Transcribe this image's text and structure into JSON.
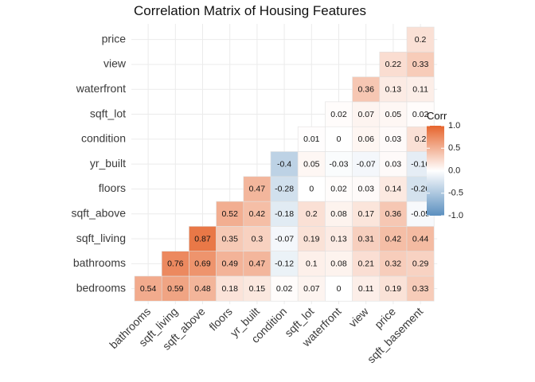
{
  "chart_data": {
    "type": "heatmap",
    "title": "Correlation Matrix of Housing Features",
    "x_labels": [
      "bathrooms",
      "sqft_living",
      "sqft_above",
      "floors",
      "yr_built",
      "condition",
      "sqft_lot",
      "waterfront",
      "view",
      "price",
      "sqft_basement"
    ],
    "y_labels": [
      "bedrooms",
      "bathrooms",
      "sqft_living",
      "sqft_above",
      "floors",
      "yr_built",
      "condition",
      "sqft_lot",
      "waterfront",
      "view",
      "price"
    ],
    "cells": [
      {
        "row": "bedrooms",
        "col": "bathrooms",
        "value": 0.54
      },
      {
        "row": "bedrooms",
        "col": "sqft_living",
        "value": 0.59
      },
      {
        "row": "bedrooms",
        "col": "sqft_above",
        "value": 0.48
      },
      {
        "row": "bedrooms",
        "col": "floors",
        "value": 0.18
      },
      {
        "row": "bedrooms",
        "col": "yr_built",
        "value": 0.15
      },
      {
        "row": "bedrooms",
        "col": "condition",
        "value": 0.02
      },
      {
        "row": "bedrooms",
        "col": "sqft_lot",
        "value": 0.07
      },
      {
        "row": "bedrooms",
        "col": "waterfront",
        "value": 0
      },
      {
        "row": "bedrooms",
        "col": "view",
        "value": 0.11
      },
      {
        "row": "bedrooms",
        "col": "price",
        "value": 0.19
      },
      {
        "row": "bedrooms",
        "col": "sqft_basement",
        "value": 0.33
      },
      {
        "row": "bathrooms",
        "col": "sqft_living",
        "value": 0.76
      },
      {
        "row": "bathrooms",
        "col": "sqft_above",
        "value": 0.69
      },
      {
        "row": "bathrooms",
        "col": "floors",
        "value": 0.49
      },
      {
        "row": "bathrooms",
        "col": "yr_built",
        "value": 0.47
      },
      {
        "row": "bathrooms",
        "col": "condition",
        "value": -0.12
      },
      {
        "row": "bathrooms",
        "col": "sqft_lot",
        "value": 0.1
      },
      {
        "row": "bathrooms",
        "col": "waterfront",
        "value": 0.08
      },
      {
        "row": "bathrooms",
        "col": "view",
        "value": 0.21
      },
      {
        "row": "bathrooms",
        "col": "price",
        "value": 0.32
      },
      {
        "row": "bathrooms",
        "col": "sqft_basement",
        "value": 0.29
      },
      {
        "row": "sqft_living",
        "col": "sqft_above",
        "value": 0.87
      },
      {
        "row": "sqft_living",
        "col": "floors",
        "value": 0.35
      },
      {
        "row": "sqft_living",
        "col": "yr_built",
        "value": 0.3
      },
      {
        "row": "sqft_living",
        "col": "condition",
        "value": -0.07
      },
      {
        "row": "sqft_living",
        "col": "sqft_lot",
        "value": 0.19
      },
      {
        "row": "sqft_living",
        "col": "waterfront",
        "value": 0.13
      },
      {
        "row": "sqft_living",
        "col": "view",
        "value": 0.31
      },
      {
        "row": "sqft_living",
        "col": "price",
        "value": 0.42
      },
      {
        "row": "sqft_living",
        "col": "sqft_basement",
        "value": 0.44
      },
      {
        "row": "sqft_above",
        "col": "floors",
        "value": 0.52
      },
      {
        "row": "sqft_above",
        "col": "yr_built",
        "value": 0.42
      },
      {
        "row": "sqft_above",
        "col": "condition",
        "value": -0.18
      },
      {
        "row": "sqft_above",
        "col": "sqft_lot",
        "value": 0.2
      },
      {
        "row": "sqft_above",
        "col": "waterfront",
        "value": 0.08
      },
      {
        "row": "sqft_above",
        "col": "view",
        "value": 0.17
      },
      {
        "row": "sqft_above",
        "col": "price",
        "value": 0.36
      },
      {
        "row": "sqft_above",
        "col": "sqft_basement",
        "value": -0.05
      },
      {
        "row": "floors",
        "col": "yr_built",
        "value": 0.47
      },
      {
        "row": "floors",
        "col": "condition",
        "value": -0.28
      },
      {
        "row": "floors",
        "col": "sqft_lot",
        "value": 0
      },
      {
        "row": "floors",
        "col": "waterfront",
        "value": 0.02
      },
      {
        "row": "floors",
        "col": "view",
        "value": 0.03
      },
      {
        "row": "floors",
        "col": "price",
        "value": 0.14
      },
      {
        "row": "floors",
        "col": "sqft_basement",
        "value": -0.26
      },
      {
        "row": "yr_built",
        "col": "condition",
        "value": -0.4
      },
      {
        "row": "yr_built",
        "col": "sqft_lot",
        "value": 0.05
      },
      {
        "row": "yr_built",
        "col": "waterfront",
        "value": -0.03
      },
      {
        "row": "yr_built",
        "col": "view",
        "value": -0.07
      },
      {
        "row": "yr_built",
        "col": "price",
        "value": 0.03
      },
      {
        "row": "yr_built",
        "col": "sqft_basement",
        "value": -0.16
      },
      {
        "row": "condition",
        "col": "sqft_lot",
        "value": 0.01
      },
      {
        "row": "condition",
        "col": "waterfront",
        "value": 0
      },
      {
        "row": "condition",
        "col": "view",
        "value": 0.06
      },
      {
        "row": "condition",
        "col": "price",
        "value": 0.03
      },
      {
        "row": "condition",
        "col": "sqft_basement",
        "value": 0.2
      },
      {
        "row": "sqft_lot",
        "col": "waterfront",
        "value": 0.02
      },
      {
        "row": "sqft_lot",
        "col": "view",
        "value": 0.07
      },
      {
        "row": "sqft_lot",
        "col": "price",
        "value": 0.05
      },
      {
        "row": "sqft_lot",
        "col": "sqft_basement",
        "value": 0.02
      },
      {
        "row": "waterfront",
        "col": "view",
        "value": 0.36
      },
      {
        "row": "waterfront",
        "col": "price",
        "value": 0.13
      },
      {
        "row": "waterfront",
        "col": "sqft_basement",
        "value": 0.11
      },
      {
        "row": "view",
        "col": "price",
        "value": 0.22
      },
      {
        "row": "view",
        "col": "sqft_basement",
        "value": 0.33
      },
      {
        "row": "price",
        "col": "sqft_basement",
        "value": 0.2
      }
    ],
    "legend": {
      "title": "Corr",
      "placement": "right",
      "range": [
        -1,
        1
      ],
      "breaks": [
        1.0,
        0.5,
        0.0,
        -0.5,
        -1.0
      ],
      "break_labels": [
        "1.0",
        "0.5",
        "0.0",
        "-0.5",
        "-1.0"
      ]
    },
    "colors": {
      "high": "#e6642c",
      "mid": "#ffffff",
      "low": "#5b8fbf",
      "grid": "#ebebeb"
    },
    "grid": true
  }
}
